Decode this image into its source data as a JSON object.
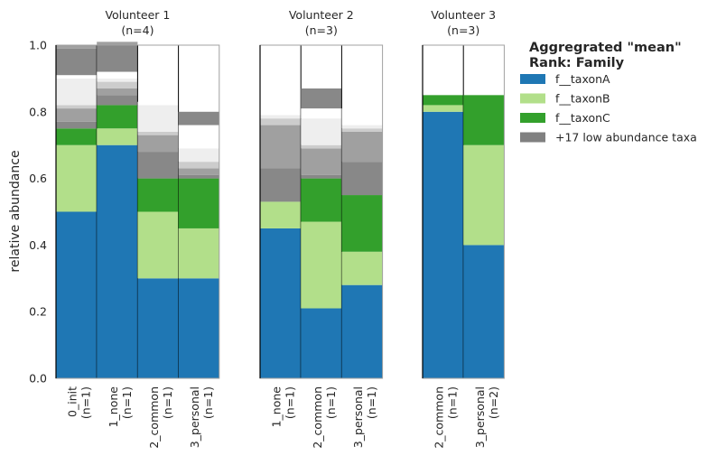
{
  "chart_data": {
    "type": "bar",
    "stacked": true,
    "ylabel": "relative abundance",
    "ylim": [
      0,
      1.0
    ],
    "yticks": [
      "0.0",
      "0.2",
      "0.4",
      "0.6",
      "0.8",
      "1.0"
    ],
    "grid": false,
    "legend": {
      "placement": "outside-right",
      "title_line1": "Aggregrated \"mean\"",
      "title_line2": "Rank: Family",
      "entries": [
        {
          "name": "f__taxonA",
          "color": "#1f77b4"
        },
        {
          "name": "f__taxonB",
          "color": "#b2df8a"
        },
        {
          "name": "f__taxonC",
          "color": "#33a02c"
        },
        {
          "name": "+17 low abundance taxa",
          "color": "#808080"
        }
      ]
    },
    "low_abundance_shades": [
      "#888888",
      "#a0a0a0",
      "#cccccc",
      "#eeeeee",
      "#ffffff"
    ],
    "panels": [
      {
        "title_line1": "Volunteer  1",
        "title_line2": "(n=4)",
        "bars": [
          {
            "label_line1": "0_init",
            "label_line2": "(n=1)",
            "taxonA": 0.5,
            "taxonB": 0.2,
            "taxonC": 0.05,
            "low": [
              0.02,
              0.04,
              0.01,
              0.08,
              0.01,
              0.08,
              0.01
            ]
          },
          {
            "label_line1": "1_none",
            "label_line2": "(n=1)",
            "taxonA": 0.7,
            "taxonB": 0.05,
            "taxonC": 0.07,
            "low": [
              0.03,
              0.02,
              0.02,
              0.01,
              0.02,
              0.08,
              0.01
            ]
          },
          {
            "label_line1": "2_common",
            "label_line2": "(n=1)",
            "taxonA": 0.3,
            "taxonB": 0.2,
            "taxonC": 0.1,
            "low": [
              0.08,
              0.05,
              0.01,
              0.08,
              0.01
            ]
          },
          {
            "label_line1": "3_personal",
            "label_line2": "(n=1)",
            "taxonA": 0.3,
            "taxonB": 0.15,
            "taxonC": 0.15,
            "low": [
              0.01,
              0.02,
              0.02,
              0.04,
              0.07,
              0.04
            ]
          }
        ]
      },
      {
        "title_line1": "Volunteer  2",
        "title_line2": "(n=3)",
        "bars": [
          {
            "label_line1": "1_none",
            "label_line2": "(n=1)",
            "taxonA": 0.45,
            "taxonB": 0.08,
            "taxonC": 0.0,
            "low": [
              0.1,
              0.13,
              0.02,
              0.01,
              0.07
            ]
          },
          {
            "label_line1": "2_common",
            "label_line2": "(n=1)",
            "taxonA": 0.21,
            "taxonB": 0.26,
            "taxonC": 0.13,
            "low": [
              0.01,
              0.08,
              0.01,
              0.08,
              0.03,
              0.06
            ]
          },
          {
            "label_line1": "3_personal",
            "label_line2": "(n=1)",
            "taxonA": 0.28,
            "taxonB": 0.1,
            "taxonC": 0.17,
            "low": [
              0.1,
              0.09,
              0.01,
              0.01,
              0.05
            ]
          }
        ]
      },
      {
        "title_line1": "Volunteer  3",
        "title_line2": "(n=3)",
        "bars": [
          {
            "label_line1": "2_common",
            "label_line2": "(n=1)",
            "taxonA": 0.8,
            "taxonB": 0.02,
            "taxonC": 0.03,
            "low": []
          },
          {
            "label_line1": "3_personal",
            "label_line2": "(n=2)",
            "taxonA": 0.4,
            "taxonB": 0.3,
            "taxonC": 0.15,
            "low": []
          }
        ]
      }
    ]
  }
}
